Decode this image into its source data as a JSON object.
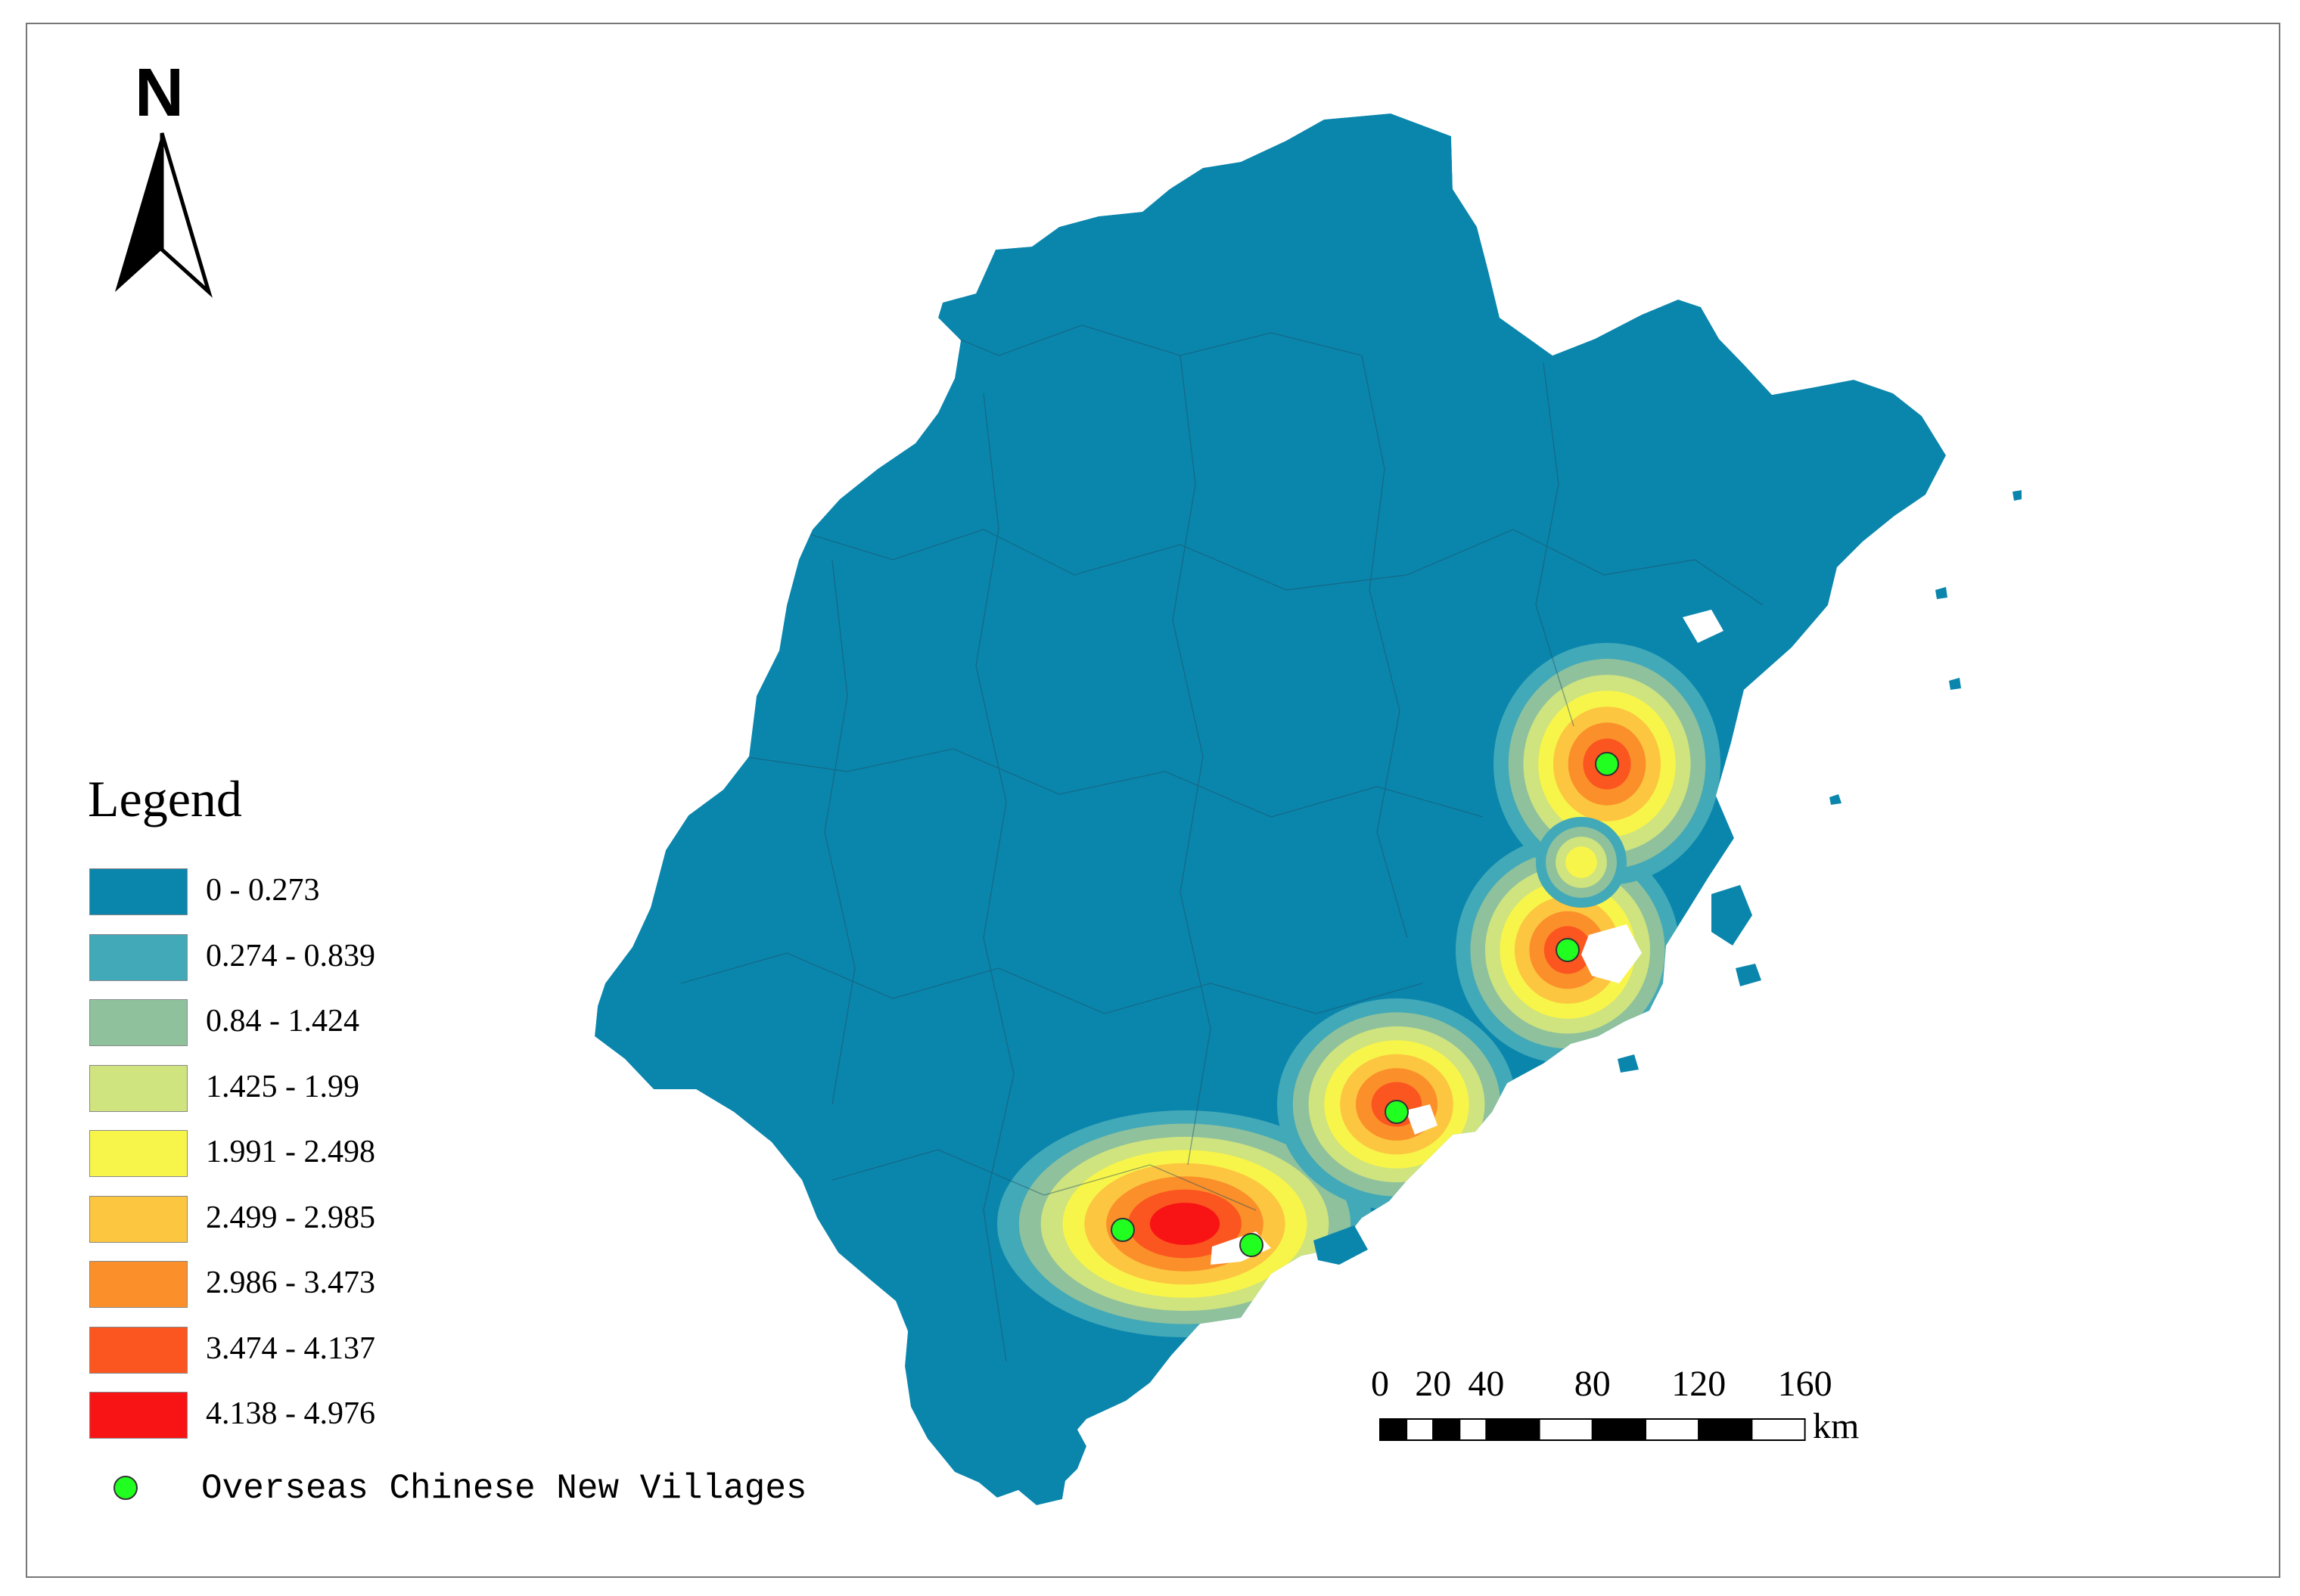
{
  "compass": {
    "letter": "N"
  },
  "legend": {
    "title": "Legend",
    "classes": [
      {
        "label": "0 - 0.273",
        "color": "#0a86ad"
      },
      {
        "label": "0.274 - 0.839",
        "color": "#42a9b8"
      },
      {
        "label": "0.84 - 1.424",
        "color": "#8ec19c"
      },
      {
        "label": "1.425 - 1.99",
        "color": "#cfe37e"
      },
      {
        "label": "1.991 - 2.498",
        "color": "#f8f54a"
      },
      {
        "label": "2.499 - 2.985",
        "color": "#fcc640"
      },
      {
        "label": "2.986 - 3.473",
        "color": "#fb8f2a"
      },
      {
        "label": "3.474 - 4.137",
        "color": "#fb5620"
      },
      {
        "label": "4.138 - 4.976",
        "color": "#f81414"
      }
    ],
    "point_label": "Overseas Chinese New Villages",
    "point_color": "#20ff20"
  },
  "scale_bar": {
    "ticks": [
      "0",
      "20",
      "40",
      "80",
      "120",
      "160"
    ],
    "unit": "km"
  }
}
